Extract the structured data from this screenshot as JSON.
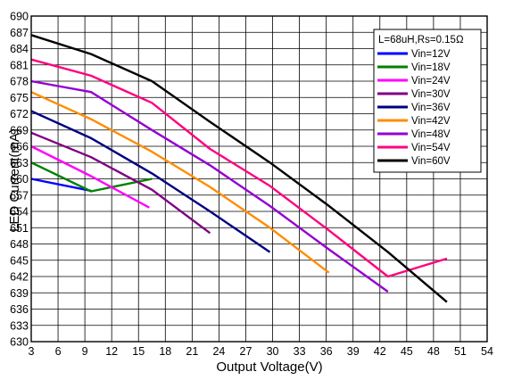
{
  "chart_data": {
    "type": "line",
    "xlabel": "Output Voltage(V)",
    "ylabel": "LED Current(mA)",
    "xlim": [
      3,
      54
    ],
    "ylim": [
      630,
      690
    ],
    "x_ticks": [
      "3",
      "6",
      "9",
      "12",
      "15",
      "18",
      "21",
      "24",
      "27",
      "30",
      "33",
      "36",
      "39",
      "42",
      "45",
      "48",
      "51",
      "54"
    ],
    "y_ticks": [
      "630",
      "633",
      "636",
      "639",
      "642",
      "645",
      "648",
      "651",
      "654",
      "657",
      "660",
      "663",
      "666",
      "669",
      "672",
      "675",
      "678",
      "681",
      "684",
      "687",
      "690"
    ],
    "grid": true,
    "legend_position": "top-right",
    "legend_title": "L=68uH,Rs=0.15Ω",
    "series": [
      {
        "name": "Vin=12V",
        "color": "#0000ff",
        "x": [
          3,
          9.7
        ],
        "y": [
          660,
          657.8
        ]
      },
      {
        "name": "Vin=18V",
        "color": "#008000",
        "x": [
          3,
          9.7,
          16.5
        ],
        "y": [
          663,
          657.7,
          660
        ]
      },
      {
        "name": "Vin=24V",
        "color": "#ff00ff",
        "x": [
          3,
          9.7,
          16.2
        ],
        "y": [
          666,
          660.5,
          654.7
        ]
      },
      {
        "name": "Vin=30V",
        "color": "#800080",
        "x": [
          3,
          9.7,
          16.5,
          23
        ],
        "y": [
          668.5,
          664,
          658,
          650
        ]
      },
      {
        "name": "Vin=36V",
        "color": "#000080",
        "x": [
          3,
          9.7,
          16.5,
          23,
          29.7
        ],
        "y": [
          672.5,
          667.5,
          661,
          654,
          646.5
        ]
      },
      {
        "name": "Vin=42V",
        "color": "#ff8c00",
        "x": [
          3,
          9.7,
          16.5,
          23,
          29.7,
          36.3
        ],
        "y": [
          676,
          671,
          665,
          658.5,
          651,
          642.7
        ]
      },
      {
        "name": "Vin=48V",
        "color": "#9400d3",
        "x": [
          3,
          9.7,
          16.5,
          23,
          29.7,
          36.3,
          42.9
        ],
        "y": [
          678,
          676,
          669,
          662.5,
          655,
          647,
          639.2
        ]
      },
      {
        "name": "Vin=54V",
        "color": "#ff0080",
        "x": [
          3,
          9.7,
          16.5,
          23,
          29.7,
          36.3,
          42.9,
          49.5
        ],
        "y": [
          682,
          679,
          674,
          665.5,
          658.7,
          650.5,
          642,
          645.3
        ]
      },
      {
        "name": "Vin=60V",
        "color": "#000000",
        "x": [
          3,
          9.7,
          16.5,
          23,
          29.7,
          36.3,
          42.9,
          49.5
        ],
        "y": [
          686.5,
          683,
          678,
          670.5,
          663,
          655,
          646.5,
          637.3
        ]
      }
    ]
  }
}
